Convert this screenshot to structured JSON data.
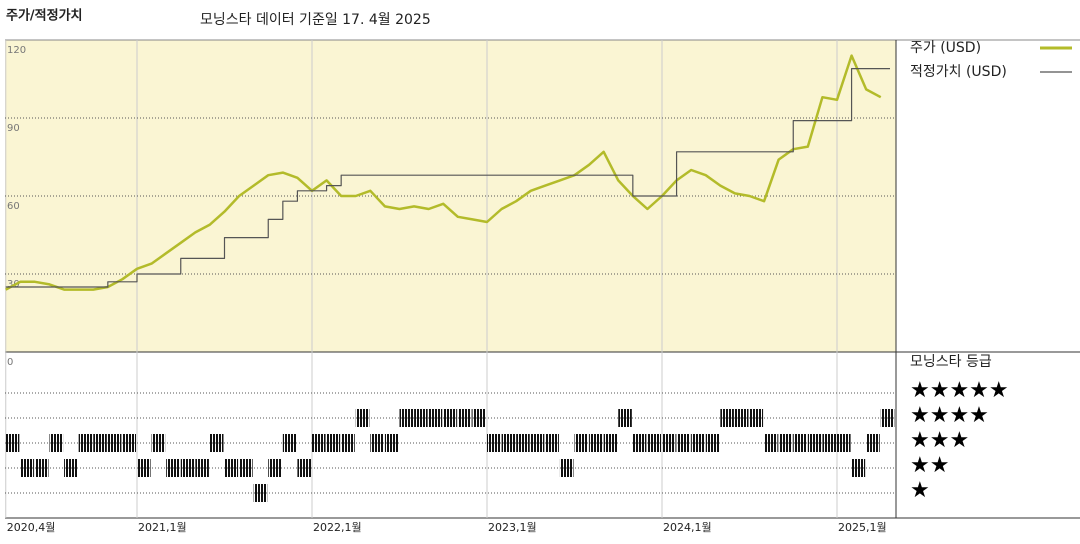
{
  "chart_data": {
    "type": "line",
    "title": "주가/적정가치",
    "subtitle": "모닝스타 데이터 기준일 17. 4월 2025",
    "x": [
      "2020-04",
      "2020-05",
      "2020-06",
      "2020-07",
      "2020-08",
      "2020-09",
      "2020-10",
      "2020-11",
      "2020-12",
      "2021-01",
      "2021-02",
      "2021-03",
      "2021-04",
      "2021-05",
      "2021-06",
      "2021-07",
      "2021-08",
      "2021-09",
      "2021-10",
      "2021-11",
      "2021-12",
      "2022-01",
      "2022-02",
      "2022-03",
      "2022-04",
      "2022-05",
      "2022-06",
      "2022-07",
      "2022-08",
      "2022-09",
      "2022-10",
      "2022-11",
      "2022-12",
      "2023-01",
      "2023-02",
      "2023-03",
      "2023-04",
      "2023-05",
      "2023-06",
      "2023-07",
      "2023-08",
      "2023-09",
      "2023-10",
      "2023-11",
      "2023-12",
      "2024-01",
      "2024-02",
      "2024-03",
      "2024-04",
      "2024-05",
      "2024-06",
      "2024-07",
      "2024-08",
      "2024-09",
      "2024-10",
      "2024-11",
      "2024-12",
      "2025-01",
      "2025-02",
      "2025-03",
      "2025-04"
    ],
    "series": [
      {
        "name": "주가 (USD)",
        "color": "#b3bb2a",
        "step": false,
        "values": [
          24,
          27,
          27,
          26,
          24,
          24,
          24,
          25,
          28,
          32,
          34,
          38,
          42,
          46,
          49,
          54,
          60,
          64,
          68,
          69,
          67,
          62,
          66,
          60,
          60,
          62,
          56,
          55,
          56,
          55,
          57,
          52,
          51,
          50,
          55,
          58,
          62,
          64,
          66,
          68,
          72,
          77,
          66,
          60,
          55,
          60,
          66,
          70,
          68,
          64,
          61,
          60,
          58,
          74,
          78,
          79,
          98,
          97,
          114,
          101,
          98
        ]
      },
      {
        "name": "적정가치 (USD)",
        "color": "#555555",
        "step": true,
        "values": [
          25,
          25,
          25,
          25,
          25,
          25,
          25,
          27,
          27,
          30,
          30,
          30,
          36,
          36,
          36,
          44,
          44,
          44,
          51,
          58,
          62,
          62,
          64,
          68,
          68,
          68,
          68,
          68,
          68,
          68,
          68,
          68,
          68,
          68,
          68,
          68,
          68,
          68,
          68,
          68,
          68,
          68,
          68,
          60,
          60,
          60,
          77,
          77,
          77,
          77,
          77,
          77,
          77,
          77,
          89,
          89,
          89,
          89,
          109,
          109,
          109
        ]
      }
    ],
    "ylim": [
      0,
      120
    ],
    "yticks": [
      0,
      30,
      60,
      90,
      120
    ],
    "grid": true,
    "xticks": [
      {
        "value": "2020-04",
        "label": "2020,4월"
      },
      {
        "value": "2021-01",
        "label": "2021,1월"
      },
      {
        "value": "2022-01",
        "label": "2022,1월"
      },
      {
        "value": "2023-01",
        "label": "2023,1월"
      },
      {
        "value": "2024-01",
        "label": "2024,1월"
      },
      {
        "value": "2025-01",
        "label": "2025,1월"
      }
    ],
    "rating": {
      "title": "모닝스타 등급",
      "levels": [
        "★",
        "★★",
        "★★★",
        "★★★★",
        "★★★★★"
      ],
      "values": [
        3,
        2,
        2,
        3,
        2,
        3,
        3,
        3,
        3,
        2,
        3,
        2,
        2,
        2,
        3,
        2,
        2,
        1,
        2,
        3,
        2,
        3,
        3,
        3,
        4,
        3,
        3,
        4,
        4,
        4,
        4,
        4,
        4,
        3,
        3,
        3,
        3,
        3,
        2,
        3,
        3,
        3,
        4,
        3,
        3,
        3,
        3,
        3,
        3,
        4,
        4,
        4,
        3,
        3,
        3,
        3,
        3,
        3,
        2,
        3,
        4
      ]
    }
  }
}
